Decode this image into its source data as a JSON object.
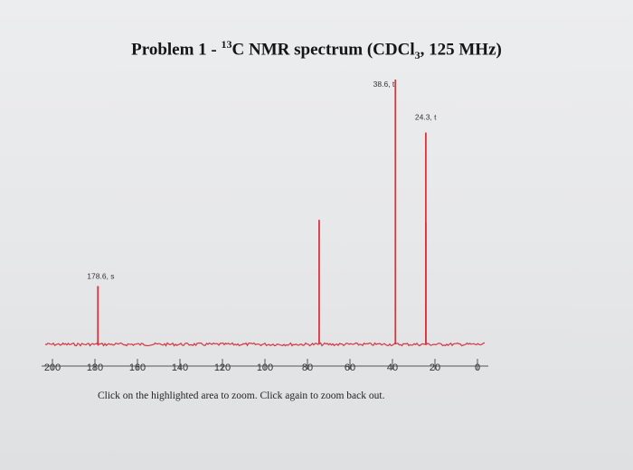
{
  "title": {
    "prefix": "Problem 1 - ",
    "isotope_mass": "13",
    "nucleus": "C NMR spectrum (CDCl",
    "subscript": "3",
    "suffix": ", 125 MHz)"
  },
  "instruction": "Click on the highlighted area to zoom. Click again to zoom back out.",
  "colors": {
    "spectrum": "#d8353e",
    "axis": "#555555",
    "text": "#222222"
  },
  "chart_data": {
    "type": "line",
    "title": "Problem 1 - 13C NMR spectrum (CDCl3, 125 MHz)",
    "xlabel": "",
    "ylabel": "",
    "xlim": [
      200,
      0
    ],
    "x_reversed": true,
    "xticks": [
      200,
      180,
      160,
      140,
      120,
      100,
      80,
      60,
      40,
      20,
      0
    ],
    "xtick_labels": [
      "200",
      "180",
      "160",
      "140",
      "120",
      "100",
      "80",
      "60",
      "40",
      "20",
      "0"
    ],
    "ylim": [
      0,
      1
    ],
    "grid": false,
    "peaks": [
      {
        "shift": 178.6,
        "height": 0.22,
        "label": "178.6, s"
      },
      {
        "shift": 74.5,
        "height": 0.47,
        "label": ""
      },
      {
        "shift": 38.6,
        "height": 1.0,
        "label": "38.6, t"
      },
      {
        "shift": 24.3,
        "height": 0.8,
        "label": "24.3, t"
      },
      {
        "shift": 24.3,
        "height": 0.46,
        "label": ""
      }
    ]
  }
}
